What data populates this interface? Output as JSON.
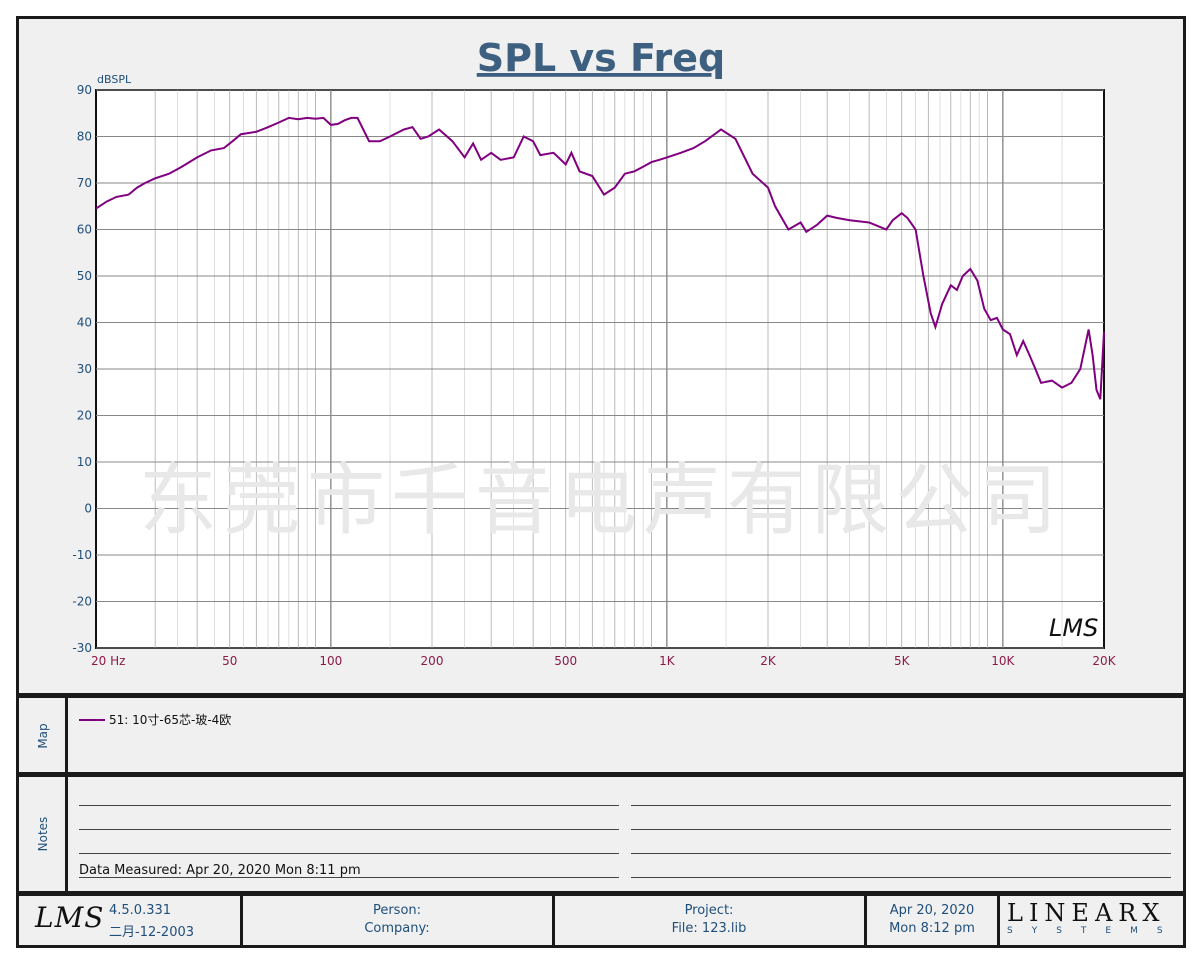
{
  "chart_data": {
    "type": "line",
    "title": "SPL vs Freq",
    "ylabel": "dBSPL",
    "xscale": "log",
    "xlim": [
      20,
      20000
    ],
    "ylim": [
      -30,
      90
    ],
    "yticks": [
      90,
      80,
      70,
      60,
      50,
      40,
      30,
      20,
      10,
      0,
      -10,
      -20,
      -30
    ],
    "xticks": [
      {
        "value": 20,
        "label": "20  Hz"
      },
      {
        "value": 50,
        "label": "50"
      },
      {
        "value": 100,
        "label": "100"
      },
      {
        "value": 200,
        "label": "200"
      },
      {
        "value": 500,
        "label": "500"
      },
      {
        "value": 1000,
        "label": "1K"
      },
      {
        "value": 2000,
        "label": "2K"
      },
      {
        "value": 5000,
        "label": "5K"
      },
      {
        "value": 10000,
        "label": "10K"
      },
      {
        "value": 20000,
        "label": "20K"
      }
    ],
    "series": [
      {
        "name": "51: 10寸-65芯-玻-4欧",
        "color": "#800080",
        "points": [
          [
            20,
            64.5
          ],
          [
            21.5,
            66
          ],
          [
            23,
            67
          ],
          [
            25,
            67.5
          ],
          [
            26.5,
            69
          ],
          [
            28,
            70
          ],
          [
            30,
            71
          ],
          [
            33,
            72
          ],
          [
            36,
            73.5
          ],
          [
            40,
            75.5
          ],
          [
            44,
            77
          ],
          [
            48,
            77.5
          ],
          [
            51,
            79
          ],
          [
            54,
            80.5
          ],
          [
            60,
            81
          ],
          [
            65,
            82
          ],
          [
            70,
            83
          ],
          [
            75,
            84
          ],
          [
            80,
            83.7
          ],
          [
            85,
            84
          ],
          [
            90,
            83.8
          ],
          [
            95,
            84
          ],
          [
            100,
            82.5
          ],
          [
            105,
            82.7
          ],
          [
            110,
            83.5
          ],
          [
            115,
            84
          ],
          [
            120,
            84
          ],
          [
            130,
            79
          ],
          [
            140,
            79
          ],
          [
            150,
            80
          ],
          [
            165,
            81.5
          ],
          [
            175,
            82
          ],
          [
            185,
            79.5
          ],
          [
            195,
            80
          ],
          [
            210,
            81.5
          ],
          [
            230,
            79
          ],
          [
            250,
            75.5
          ],
          [
            265,
            78.5
          ],
          [
            280,
            75
          ],
          [
            300,
            76.5
          ],
          [
            320,
            75
          ],
          [
            350,
            75.5
          ],
          [
            375,
            80
          ],
          [
            400,
            79
          ],
          [
            420,
            76
          ],
          [
            460,
            76.5
          ],
          [
            500,
            74
          ],
          [
            520,
            76.5
          ],
          [
            550,
            72.5
          ],
          [
            600,
            71.5
          ],
          [
            650,
            67.5
          ],
          [
            700,
            69
          ],
          [
            750,
            72
          ],
          [
            800,
            72.5
          ],
          [
            850,
            73.5
          ],
          [
            900,
            74.5
          ],
          [
            950,
            75
          ],
          [
            1000,
            75.5
          ],
          [
            1100,
            76.5
          ],
          [
            1200,
            77.5
          ],
          [
            1300,
            79
          ],
          [
            1450,
            81.5
          ],
          [
            1600,
            79.5
          ],
          [
            1800,
            72
          ],
          [
            2000,
            69
          ],
          [
            2100,
            65
          ],
          [
            2300,
            60
          ],
          [
            2500,
            61.5
          ],
          [
            2600,
            59.5
          ],
          [
            2800,
            61
          ],
          [
            3000,
            63
          ],
          [
            3200,
            62.5
          ],
          [
            3500,
            62
          ],
          [
            4000,
            61.5
          ],
          [
            4500,
            60
          ],
          [
            4700,
            62
          ],
          [
            5000,
            63.5
          ],
          [
            5200,
            62.5
          ],
          [
            5500,
            60
          ],
          [
            5800,
            50
          ],
          [
            6100,
            42
          ],
          [
            6300,
            39
          ],
          [
            6600,
            44
          ],
          [
            7000,
            48
          ],
          [
            7300,
            47
          ],
          [
            7600,
            50
          ],
          [
            8000,
            51.5
          ],
          [
            8400,
            49
          ],
          [
            8800,
            43
          ],
          [
            9200,
            40.5
          ],
          [
            9600,
            41
          ],
          [
            10000,
            38.5
          ],
          [
            10500,
            37.5
          ],
          [
            11000,
            33
          ],
          [
            11500,
            36
          ],
          [
            12000,
            33
          ],
          [
            12500,
            30
          ],
          [
            13000,
            27
          ],
          [
            14000,
            27.5
          ],
          [
            15000,
            26
          ],
          [
            16000,
            27
          ],
          [
            17000,
            30
          ],
          [
            18000,
            38.5
          ],
          [
            18500,
            33
          ],
          [
            19000,
            25.5
          ],
          [
            19500,
            23.5
          ],
          [
            20000,
            38
          ]
        ]
      }
    ],
    "watermark": "东莞市千音电声有限公司",
    "corner_logo": "LMS"
  },
  "side_labels": {
    "map": "Map",
    "notes": "Notes"
  },
  "notes": {
    "measured": "Data Measured: Apr 20, 2020  Mon  8:11 pm"
  },
  "footer": {
    "logo": "LMS",
    "version": "4.5.0.331",
    "version_date": "二月-12-2003",
    "person_label": "Person:",
    "company_label": "Company:",
    "project_label": "Project:",
    "file_label": "File: 123.lib",
    "date": "Apr 20, 2020",
    "time": "Mon  8:12 pm",
    "brand": "LINEARX",
    "brand_sub": "SYSTEMS"
  }
}
